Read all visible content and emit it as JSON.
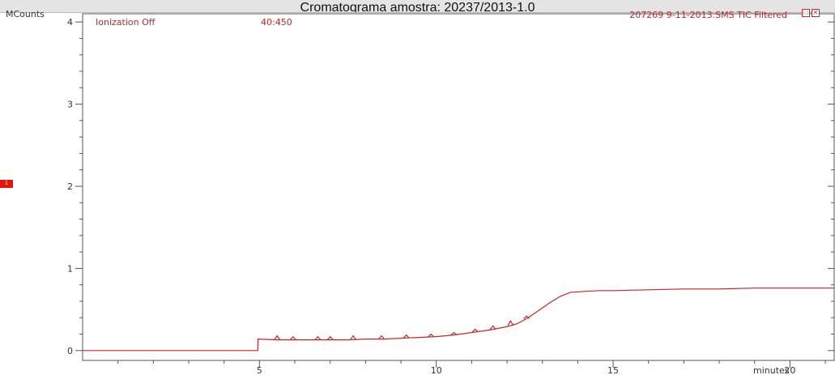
{
  "chart_data": {
    "type": "line",
    "title": "Cromatograma amostra: 20237/2013-1.0",
    "ylabel": "MCounts",
    "xlabel": "minutes",
    "annotations": {
      "left_top": "Ionization Off",
      "mass_range": "40:450",
      "trace_name": "207269 9-11-2013.SMS TIC Filtered",
      "marker_label": "1"
    },
    "xlim": [
      0,
      21.25
    ],
    "ylim": [
      -0.12,
      4.1
    ],
    "x_ticks": [
      5,
      10,
      15,
      20
    ],
    "y_ticks": [
      0,
      1,
      2,
      3,
      4
    ],
    "grid": false,
    "line_color": "#c0282b",
    "series": [
      {
        "x": [
          0,
          4.95,
          4.96,
          5.5,
          6.0,
          6.5,
          7.0,
          7.5,
          8.0,
          8.5,
          9.0,
          9.5,
          10.0,
          10.5,
          11.0,
          11.5,
          12.0,
          12.3,
          12.6,
          12.9,
          13.2,
          13.5,
          13.8,
          14.2,
          14.6,
          15.0,
          16.0,
          17.0,
          18.0,
          19.0,
          20.0,
          21.0,
          21.25
        ],
        "y": [
          0,
          0,
          0.14,
          0.13,
          0.13,
          0.13,
          0.13,
          0.13,
          0.14,
          0.14,
          0.15,
          0.16,
          0.17,
          0.19,
          0.22,
          0.25,
          0.29,
          0.33,
          0.4,
          0.49,
          0.58,
          0.66,
          0.71,
          0.72,
          0.73,
          0.73,
          0.74,
          0.75,
          0.75,
          0.76,
          0.76,
          0.76,
          0.76
        ]
      }
    ],
    "peaks": [
      {
        "x": 5.5,
        "y": 0.18
      },
      {
        "x": 5.95,
        "y": 0.17
      },
      {
        "x": 6.65,
        "y": 0.17
      },
      {
        "x": 7.0,
        "y": 0.17
      },
      {
        "x": 7.65,
        "y": 0.18
      },
      {
        "x": 8.45,
        "y": 0.18
      },
      {
        "x": 9.15,
        "y": 0.19
      },
      {
        "x": 9.85,
        "y": 0.2
      },
      {
        "x": 10.5,
        "y": 0.22
      },
      {
        "x": 11.1,
        "y": 0.26
      },
      {
        "x": 11.6,
        "y": 0.3
      },
      {
        "x": 12.1,
        "y": 0.36
      },
      {
        "x": 12.55,
        "y": 0.42
      }
    ]
  }
}
